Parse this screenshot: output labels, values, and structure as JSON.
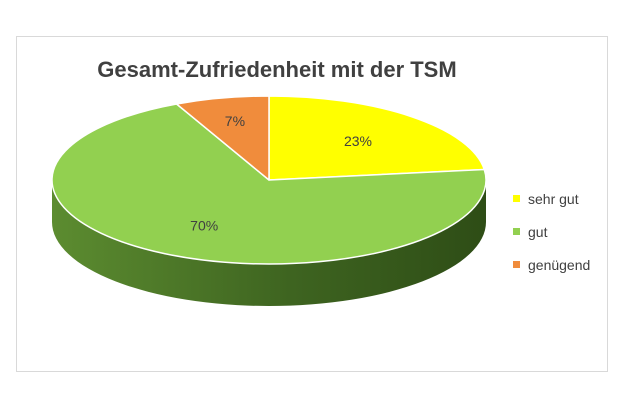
{
  "chart_data": {
    "type": "pie",
    "title": "Gesamt-Zufriedenheit mit der TSM",
    "slices": [
      {
        "label": "sehr gut",
        "value": 23,
        "display": "23%",
        "color": "#ffff00",
        "side_color": "#b3b300"
      },
      {
        "label": "gut",
        "value": 70,
        "display": "70%",
        "color": "#92d050",
        "side_color": "#4f7a2a"
      },
      {
        "label": "genügend",
        "value": 7,
        "display": "7%",
        "color": "#f08c3c",
        "side_color": "#a85a1f"
      }
    ],
    "three_d": true,
    "legend_position": "right"
  }
}
